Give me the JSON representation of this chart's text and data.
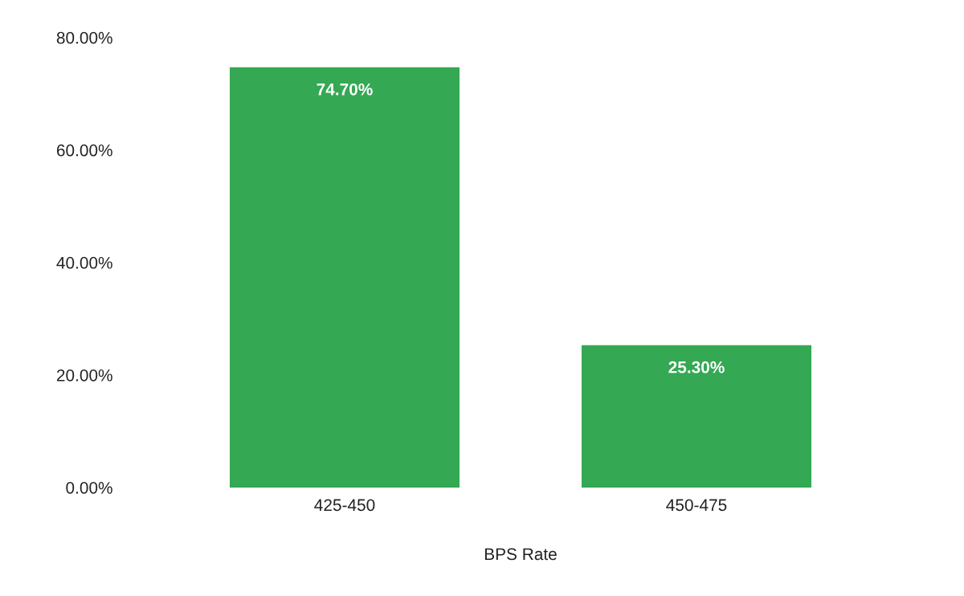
{
  "chart_data": {
    "type": "bar",
    "xlabel": "BPS Rate",
    "categories": [
      "425-450",
      "450-475"
    ],
    "values": [
      74.7,
      25.3
    ],
    "value_labels": [
      "74.70%",
      "25.30%"
    ],
    "color": "#34a853",
    "ylim": [
      0,
      80
    ],
    "yticks": [
      {
        "value": 0,
        "label": "0.00%"
      },
      {
        "value": 20,
        "label": "20.00%"
      },
      {
        "value": 40,
        "label": "40.00%"
      },
      {
        "value": 60,
        "label": "60.00%"
      },
      {
        "value": 80,
        "label": "80.00%"
      }
    ],
    "grid": false,
    "legend": false
  }
}
